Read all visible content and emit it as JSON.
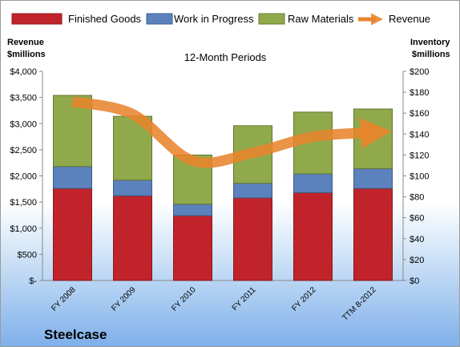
{
  "chart_data": {
    "type": "bar",
    "subtitle": "12-Month Periods",
    "company": "Steelcase",
    "categories": [
      "FY 2008",
      "FY 2009",
      "FY 2010",
      "FY 2011",
      "FY 2012",
      "TTM 8-2012"
    ],
    "stacked_series": [
      {
        "name": "Finished Goods",
        "color": "#c0242a",
        "values": [
          88,
          81,
          62,
          79,
          84,
          88
        ]
      },
      {
        "name": "Work in Progress",
        "color": "#5b82bd",
        "values": [
          21,
          15,
          11,
          14,
          18,
          19
        ]
      },
      {
        "name": "Raw Materials",
        "color": "#8fa94b",
        "values": [
          68,
          61,
          47,
          55,
          59,
          57
        ]
      }
    ],
    "line_series": {
      "name": "Revenue",
      "color": "#e8842c",
      "values": [
        3420,
        3180,
        2290,
        2440,
        2750,
        2830
      ]
    },
    "left_axis": {
      "label_line1": "Revenue",
      "label_line2": "$millions",
      "min": 0,
      "max": 4000,
      "ticks": [
        "$-",
        "$500",
        "$1,000",
        "$1,500",
        "$2,000",
        "$2,500",
        "$3,000",
        "$3,500",
        "$4,000"
      ]
    },
    "right_axis": {
      "label_line1": "Inventory",
      "label_line2": "$millions",
      "min": 0,
      "max": 200,
      "ticks": [
        "$0",
        "$20",
        "$40",
        "$60",
        "$80",
        "$100",
        "$120",
        "$140",
        "$160",
        "$180",
        "$200"
      ]
    },
    "legend_position": "top",
    "grid": false
  }
}
